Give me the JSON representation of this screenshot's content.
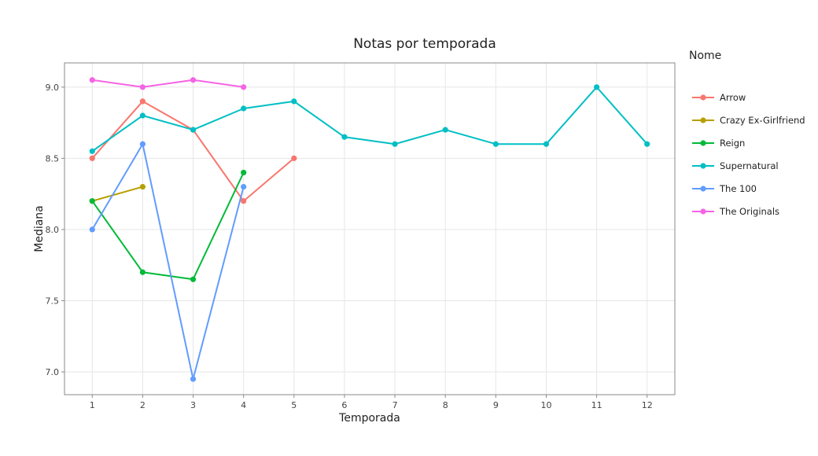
{
  "chart_data": {
    "type": "line",
    "title": "Notas por temporada",
    "xlabel": "Temporada",
    "ylabel": "Mediana",
    "x_ticks": [
      1,
      2,
      3,
      4,
      5,
      6,
      7,
      8,
      9,
      10,
      11,
      12
    ],
    "y_ticks": [
      7.0,
      7.5,
      8.0,
      8.5,
      9.0
    ],
    "y_tick_labels": [
      "7.0",
      "7.5",
      "8.0",
      "8.5",
      "9.0"
    ],
    "xlim": [
      0.45,
      12.55
    ],
    "ylim": [
      6.84,
      9.17
    ],
    "grid": true,
    "legend_title": "Nome",
    "legend_position": "right",
    "series": [
      {
        "name": "Arrow",
        "color": "#F8766D",
        "x": [
          1,
          2,
          3,
          4,
          5
        ],
        "y": [
          8.5,
          8.9,
          8.7,
          8.2,
          8.5
        ]
      },
      {
        "name": "Crazy Ex-Girlfriend",
        "color": "#B79F00",
        "x": [
          1,
          2
        ],
        "y": [
          8.2,
          8.3
        ]
      },
      {
        "name": "Reign",
        "color": "#00BA38",
        "x": [
          1,
          2,
          3,
          4
        ],
        "y": [
          8.2,
          7.7,
          7.65,
          8.4
        ]
      },
      {
        "name": "Supernatural",
        "color": "#00BFC4",
        "x": [
          1,
          2,
          3,
          4,
          5,
          6,
          7,
          8,
          9,
          10,
          11,
          12
        ],
        "y": [
          8.55,
          8.8,
          8.7,
          8.85,
          8.9,
          8.65,
          8.6,
          8.7,
          8.6,
          8.6,
          9.0,
          8.6
        ]
      },
      {
        "name": "The 100",
        "color": "#619CFF",
        "x": [
          1,
          2,
          3,
          4
        ],
        "y": [
          8.0,
          8.6,
          6.95,
          8.3
        ]
      },
      {
        "name": "The Originals",
        "color": "#F564E3",
        "x": [
          1,
          2,
          3,
          4
        ],
        "y": [
          9.05,
          9.0,
          9.05,
          9.0
        ]
      }
    ]
  }
}
